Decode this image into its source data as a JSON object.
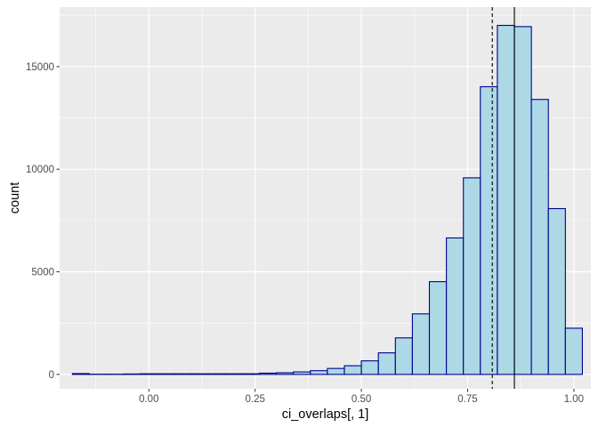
{
  "chart_data": {
    "type": "histogram",
    "xlabel": "ci_overlaps[, 1]",
    "ylabel": "count",
    "xlim": [
      -0.21,
      1.04
    ],
    "ylim": [
      -700,
      17900
    ],
    "x_ticks": [
      0.0,
      0.25,
      0.5,
      0.75,
      1.0
    ],
    "x_tick_labels": [
      "0.00",
      "0.25",
      "0.50",
      "0.75",
      "1.00"
    ],
    "y_ticks": [
      0,
      5000,
      10000,
      15000
    ],
    "y_tick_labels": [
      "0",
      "5000",
      "10000",
      "15000"
    ],
    "grid": true,
    "bin_width": 0.04,
    "bins": [
      {
        "x0": -0.18,
        "x1": -0.14,
        "count": 40
      },
      {
        "x0": -0.14,
        "x1": -0.1,
        "count": 10
      },
      {
        "x0": -0.1,
        "x1": -0.06,
        "count": 10
      },
      {
        "x0": -0.06,
        "x1": -0.02,
        "count": 20
      },
      {
        "x0": -0.02,
        "x1": 0.02,
        "count": 30
      },
      {
        "x0": 0.02,
        "x1": 0.06,
        "count": 30
      },
      {
        "x0": 0.06,
        "x1": 0.1,
        "count": 30
      },
      {
        "x0": 0.1,
        "x1": 0.14,
        "count": 30
      },
      {
        "x0": 0.14,
        "x1": 0.18,
        "count": 30
      },
      {
        "x0": 0.18,
        "x1": 0.22,
        "count": 30
      },
      {
        "x0": 0.22,
        "x1": 0.26,
        "count": 30
      },
      {
        "x0": 0.26,
        "x1": 0.3,
        "count": 60
      },
      {
        "x0": 0.3,
        "x1": 0.34,
        "count": 80
      },
      {
        "x0": 0.34,
        "x1": 0.38,
        "count": 120
      },
      {
        "x0": 0.38,
        "x1": 0.42,
        "count": 180
      },
      {
        "x0": 0.42,
        "x1": 0.46,
        "count": 290
      },
      {
        "x0": 0.46,
        "x1": 0.5,
        "count": 420
      },
      {
        "x0": 0.5,
        "x1": 0.54,
        "count": 660
      },
      {
        "x0": 0.54,
        "x1": 0.58,
        "count": 1050
      },
      {
        "x0": 0.58,
        "x1": 0.62,
        "count": 1780
      },
      {
        "x0": 0.62,
        "x1": 0.66,
        "count": 2950
      },
      {
        "x0": 0.66,
        "x1": 0.7,
        "count": 4520
      },
      {
        "x0": 0.7,
        "x1": 0.74,
        "count": 6650
      },
      {
        "x0": 0.74,
        "x1": 0.78,
        "count": 9580
      },
      {
        "x0": 0.78,
        "x1": 0.82,
        "count": 14020
      },
      {
        "x0": 0.82,
        "x1": 0.86,
        "count": 17010
      },
      {
        "x0": 0.86,
        "x1": 0.9,
        "count": 16950
      },
      {
        "x0": 0.9,
        "x1": 0.94,
        "count": 13400
      },
      {
        "x0": 0.94,
        "x1": 0.98,
        "count": 8080
      },
      {
        "x0": 0.98,
        "x1": 1.02,
        "count": 2250
      }
    ],
    "vlines": [
      {
        "x": 0.808,
        "style": "dashed"
      },
      {
        "x": 0.86,
        "style": "solid"
      }
    ],
    "bar_fill": "#add8e6",
    "bar_outline": "#00008b",
    "panel_background": "#ebebeb",
    "grid_color": "#ffffff",
    "vline_color": "#000000"
  }
}
